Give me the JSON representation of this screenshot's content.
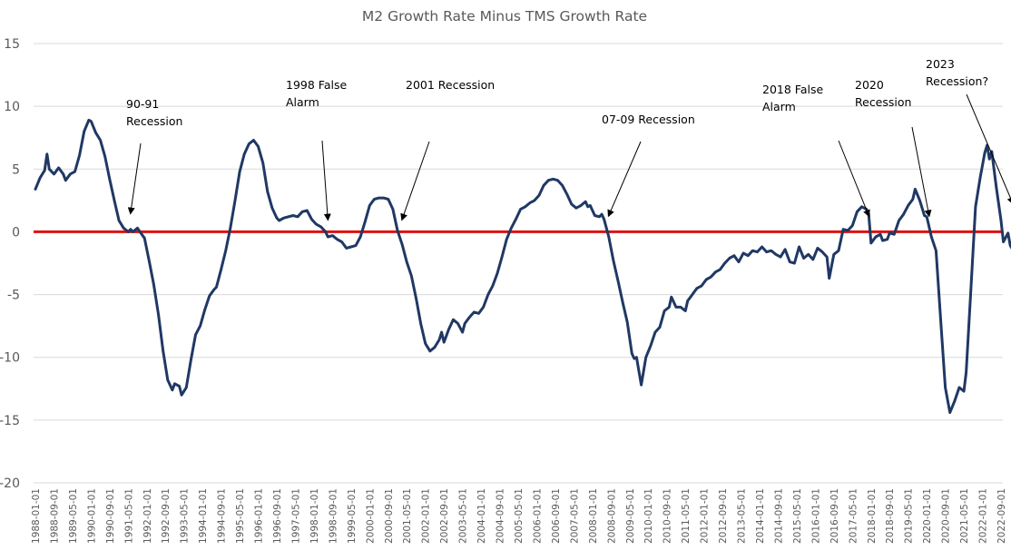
{
  "chart_data": {
    "type": "line",
    "title": "M2 Growth Rate Minus TMS Growth Rate",
    "xlabel": "",
    "ylabel": "",
    "ylim": [
      -20,
      15
    ],
    "yticks": [
      15,
      10,
      5,
      0,
      -5,
      -10,
      -15,
      -20
    ],
    "grid": true,
    "legend": "none",
    "x_start": "1988-01-01",
    "x_end": "2022-09-01",
    "xtick_labels": [
      "1988-01-01",
      "1988-09-01",
      "1989-05-01",
      "1990-01-01",
      "1990-09-01",
      "1991-05-01",
      "1992-01-01",
      "1992-09-01",
      "1993-05-01",
      "1994-01-01",
      "1994-09-01",
      "1995-05-01",
      "1996-01-01",
      "1996-09-01",
      "1997-05-01",
      "1998-01-01",
      "1998-09-01",
      "1999-05-01",
      "2000-01-01",
      "2000-09-01",
      "2001-05-01",
      "2002-01-01",
      "2002-09-01",
      "2003-05-01",
      "2004-01-01",
      "2004-09-01",
      "2005-05-01",
      "2006-01-01",
      "2006-09-01",
      "2007-05-01",
      "2008-01-01",
      "2008-09-01",
      "2009-05-01",
      "2010-01-01",
      "2010-09-01",
      "2011-05-01",
      "2012-01-01",
      "2012-09-01",
      "2013-05-01",
      "2014-01-01",
      "2014-09-01",
      "2015-05-01",
      "2016-01-01",
      "2016-09-01",
      "2017-05-01",
      "2018-01-01",
      "2018-09-01",
      "2019-05-01",
      "2020-01-01",
      "2020-09-01",
      "2021-05-01",
      "2022-01-01",
      "2022-09-01"
    ],
    "series": [
      {
        "name": "M2 Growth Rate Minus TMS Growth Rate",
        "color": "#203864",
        "points": [
          [
            "1988-01",
            3.4
          ],
          [
            "1988-03",
            4.3
          ],
          [
            "1988-05",
            4.9
          ],
          [
            "1988-06",
            6.2
          ],
          [
            "1988-07",
            5.0
          ],
          [
            "1988-09",
            4.6
          ],
          [
            "1988-11",
            5.1
          ],
          [
            "1989-01",
            4.6
          ],
          [
            "1989-02",
            4.1
          ],
          [
            "1989-04",
            4.6
          ],
          [
            "1989-06",
            4.8
          ],
          [
            "1989-08",
            6.1
          ],
          [
            "1989-10",
            8.0
          ],
          [
            "1989-12",
            8.9
          ],
          [
            "1990-01",
            8.8
          ],
          [
            "1990-03",
            7.9
          ],
          [
            "1990-05",
            7.3
          ],
          [
            "1990-07",
            6.0
          ],
          [
            "1990-09",
            4.2
          ],
          [
            "1990-11",
            2.5
          ],
          [
            "1991-01",
            0.9
          ],
          [
            "1991-03",
            0.3
          ],
          [
            "1991-05",
            0.0
          ],
          [
            "1991-06",
            0.2
          ],
          [
            "1991-07",
            0.0
          ],
          [
            "1991-09",
            0.3
          ],
          [
            "1991-10",
            0.0
          ],
          [
            "1991-12",
            -0.5
          ],
          [
            "1992-02",
            -2.3
          ],
          [
            "1992-04",
            -4.2
          ],
          [
            "1992-06",
            -6.6
          ],
          [
            "1992-08",
            -9.5
          ],
          [
            "1992-10",
            -11.8
          ],
          [
            "1992-12",
            -12.6
          ],
          [
            "1993-01",
            -12.1
          ],
          [
            "1993-03",
            -12.3
          ],
          [
            "1993-04",
            -13.0
          ],
          [
            "1993-06",
            -12.4
          ],
          [
            "1993-08",
            -10.2
          ],
          [
            "1993-10",
            -8.2
          ],
          [
            "1993-12",
            -7.5
          ],
          [
            "1994-02",
            -6.2
          ],
          [
            "1994-04",
            -5.1
          ],
          [
            "1994-06",
            -4.6
          ],
          [
            "1994-07",
            -4.4
          ],
          [
            "1994-09",
            -3.0
          ],
          [
            "1994-11",
            -1.5
          ],
          [
            "1995-01",
            0.3
          ],
          [
            "1995-03",
            2.5
          ],
          [
            "1995-05",
            4.8
          ],
          [
            "1995-07",
            6.2
          ],
          [
            "1995-09",
            7.0
          ],
          [
            "1995-11",
            7.3
          ],
          [
            "1996-01",
            6.8
          ],
          [
            "1996-03",
            5.5
          ],
          [
            "1996-05",
            3.2
          ],
          [
            "1996-07",
            1.9
          ],
          [
            "1996-09",
            1.1
          ],
          [
            "1996-10",
            0.9
          ],
          [
            "1996-12",
            1.1
          ],
          [
            "1997-02",
            1.2
          ],
          [
            "1997-04",
            1.3
          ],
          [
            "1997-06",
            1.2
          ],
          [
            "1997-08",
            1.6
          ],
          [
            "1997-10",
            1.7
          ],
          [
            "1997-12",
            1.0
          ],
          [
            "1998-02",
            0.6
          ],
          [
            "1998-04",
            0.4
          ],
          [
            "1998-06",
            0.0
          ],
          [
            "1998-07",
            -0.4
          ],
          [
            "1998-09",
            -0.3
          ],
          [
            "1998-11",
            -0.6
          ],
          [
            "1999-01",
            -0.8
          ],
          [
            "1999-03",
            -1.3
          ],
          [
            "1999-05",
            -1.2
          ],
          [
            "1999-07",
            -1.1
          ],
          [
            "1999-09",
            -0.4
          ],
          [
            "1999-11",
            0.8
          ],
          [
            "2000-01",
            2.1
          ],
          [
            "2000-03",
            2.6
          ],
          [
            "2000-05",
            2.7
          ],
          [
            "2000-07",
            2.7
          ],
          [
            "2000-09",
            2.6
          ],
          [
            "2000-11",
            1.8
          ],
          [
            "2001-01",
            0.1
          ],
          [
            "2001-03",
            -1.0
          ],
          [
            "2001-05",
            -2.4
          ],
          [
            "2001-07",
            -3.5
          ],
          [
            "2001-09",
            -5.3
          ],
          [
            "2001-11",
            -7.3
          ],
          [
            "2002-01",
            -8.9
          ],
          [
            "2002-03",
            -9.5
          ],
          [
            "2002-05",
            -9.2
          ],
          [
            "2002-07",
            -8.6
          ],
          [
            "2002-08",
            -8.0
          ],
          [
            "2002-09",
            -8.8
          ],
          [
            "2002-11",
            -7.8
          ],
          [
            "2003-01",
            -7.0
          ],
          [
            "2003-03",
            -7.3
          ],
          [
            "2003-05",
            -8.0
          ],
          [
            "2003-06",
            -7.3
          ],
          [
            "2003-08",
            -6.8
          ],
          [
            "2003-10",
            -6.4
          ],
          [
            "2003-12",
            -6.5
          ],
          [
            "2004-02",
            -6.0
          ],
          [
            "2004-04",
            -5.0
          ],
          [
            "2004-06",
            -4.3
          ],
          [
            "2004-08",
            -3.3
          ],
          [
            "2004-10",
            -2.0
          ],
          [
            "2004-12",
            -0.6
          ],
          [
            "2005-02",
            0.3
          ],
          [
            "2005-04",
            1.0
          ],
          [
            "2005-06",
            1.8
          ],
          [
            "2005-08",
            2.0
          ],
          [
            "2005-10",
            2.3
          ],
          [
            "2005-12",
            2.5
          ],
          [
            "2006-02",
            2.9
          ],
          [
            "2006-04",
            3.7
          ],
          [
            "2006-06",
            4.1
          ],
          [
            "2006-08",
            4.2
          ],
          [
            "2006-10",
            4.1
          ],
          [
            "2006-12",
            3.7
          ],
          [
            "2007-02",
            3.0
          ],
          [
            "2007-04",
            2.2
          ],
          [
            "2007-06",
            1.9
          ],
          [
            "2007-08",
            2.1
          ],
          [
            "2007-10",
            2.4
          ],
          [
            "2007-11",
            2.0
          ],
          [
            "2007-12",
            2.1
          ],
          [
            "2008-02",
            1.3
          ],
          [
            "2008-04",
            1.2
          ],
          [
            "2008-05",
            1.4
          ],
          [
            "2008-06",
            1.0
          ],
          [
            "2008-08",
            -0.4
          ],
          [
            "2008-10",
            -2.3
          ],
          [
            "2008-12",
            -3.9
          ],
          [
            "2009-02",
            -5.6
          ],
          [
            "2009-04",
            -7.2
          ],
          [
            "2009-06",
            -9.7
          ],
          [
            "2009-07",
            -10.1
          ],
          [
            "2009-08",
            -10.0
          ],
          [
            "2009-10",
            -12.2
          ],
          [
            "2009-12",
            -10.0
          ],
          [
            "2010-02",
            -9.1
          ],
          [
            "2010-04",
            -8.0
          ],
          [
            "2010-06",
            -7.6
          ],
          [
            "2010-08",
            -6.3
          ],
          [
            "2010-10",
            -6.0
          ],
          [
            "2010-11",
            -5.2
          ],
          [
            "2011-01",
            -6.0
          ],
          [
            "2011-03",
            -6.0
          ],
          [
            "2011-05",
            -6.3
          ],
          [
            "2011-06",
            -5.5
          ],
          [
            "2011-08",
            -5.0
          ],
          [
            "2011-10",
            -4.5
          ],
          [
            "2011-12",
            -4.3
          ],
          [
            "2012-02",
            -3.8
          ],
          [
            "2012-04",
            -3.6
          ],
          [
            "2012-06",
            -3.2
          ],
          [
            "2012-08",
            -3.0
          ],
          [
            "2012-10",
            -2.5
          ],
          [
            "2012-12",
            -2.1
          ],
          [
            "2013-02",
            -1.9
          ],
          [
            "2013-04",
            -2.4
          ],
          [
            "2013-06",
            -1.7
          ],
          [
            "2013-08",
            -1.9
          ],
          [
            "2013-10",
            -1.5
          ],
          [
            "2013-12",
            -1.6
          ],
          [
            "2014-02",
            -1.2
          ],
          [
            "2014-04",
            -1.6
          ],
          [
            "2014-06",
            -1.5
          ],
          [
            "2014-08",
            -1.8
          ],
          [
            "2014-10",
            -2.0
          ],
          [
            "2014-12",
            -1.4
          ],
          [
            "2015-02",
            -2.4
          ],
          [
            "2015-04",
            -2.5
          ],
          [
            "2015-06",
            -1.2
          ],
          [
            "2015-08",
            -2.1
          ],
          [
            "2015-10",
            -1.8
          ],
          [
            "2015-12",
            -2.2
          ],
          [
            "2016-02",
            -1.3
          ],
          [
            "2016-04",
            -1.6
          ],
          [
            "2016-06",
            -2.0
          ],
          [
            "2016-07",
            -3.7
          ],
          [
            "2016-09",
            -1.8
          ],
          [
            "2016-11",
            -1.5
          ],
          [
            "2017-01",
            0.2
          ],
          [
            "2017-03",
            0.1
          ],
          [
            "2017-05",
            0.5
          ],
          [
            "2017-07",
            1.6
          ],
          [
            "2017-09",
            2.0
          ],
          [
            "2017-11",
            1.8
          ],
          [
            "2017-12",
            1.4
          ],
          [
            "2018-01",
            -0.9
          ],
          [
            "2018-03",
            -0.4
          ],
          [
            "2018-05",
            -0.2
          ],
          [
            "2018-06",
            -0.7
          ],
          [
            "2018-08",
            -0.6
          ],
          [
            "2018-09",
            -0.1
          ],
          [
            "2018-11",
            -0.2
          ],
          [
            "2019-01",
            0.9
          ],
          [
            "2019-03",
            1.4
          ],
          [
            "2019-05",
            2.1
          ],
          [
            "2019-07",
            2.6
          ],
          [
            "2019-08",
            3.4
          ],
          [
            "2019-10",
            2.5
          ],
          [
            "2019-12",
            1.3
          ],
          [
            "2020-01",
            1.2
          ],
          [
            "2020-03",
            -0.4
          ],
          [
            "2020-05",
            -1.5
          ],
          [
            "2020-07",
            -7.0
          ],
          [
            "2020-09",
            -12.4
          ],
          [
            "2020-11",
            -14.4
          ],
          [
            "2021-01",
            -13.5
          ],
          [
            "2021-03",
            -12.4
          ],
          [
            "2021-05",
            -12.7
          ],
          [
            "2021-06",
            -11.2
          ],
          [
            "2021-08",
            -4.6
          ],
          [
            "2021-10",
            2.0
          ],
          [
            "2021-12",
            4.3
          ],
          [
            "2022-02",
            6.3
          ],
          [
            "2022-03",
            6.9
          ],
          [
            "2022-04",
            5.8
          ],
          [
            "2022-05",
            6.4
          ],
          [
            "2022-07",
            3.5
          ],
          [
            "2022-09",
            0.9
          ],
          [
            "2022-10",
            -0.8
          ],
          [
            "2022-12",
            -0.1
          ],
          [
            "2023-01",
            -1.1
          ],
          [
            "2023-02",
            -1.4
          ]
        ]
      }
    ],
    "reference_line": {
      "y": 0,
      "color": "#e01010"
    },
    "annotations": [
      {
        "lines": [
          "90-91",
          "Recession"
        ],
        "arrow_to": [
          "1991-06",
          1.5
        ]
      },
      {
        "lines": [
          "1998 False",
          "Alarm"
        ],
        "arrow_to": [
          "1998-07",
          1.0
        ]
      },
      {
        "lines": [
          "2001 Recession"
        ],
        "arrow_to": [
          "2001-03",
          1.0
        ]
      },
      {
        "lines": [
          "07-09 Recession"
        ],
        "arrow_to": [
          "2008-08",
          1.3
        ]
      },
      {
        "lines": [
          "2018 False",
          "Alarm"
        ],
        "arrow_to": [
          "2017-12",
          1.3
        ]
      },
      {
        "lines": [
          "2020",
          "Recession"
        ],
        "arrow_to": [
          "2020-02",
          1.3
        ]
      },
      {
        "lines": [
          "2023",
          "Recession?"
        ],
        "arrow_to": [
          "2023-02",
          2.3
        ]
      }
    ]
  }
}
